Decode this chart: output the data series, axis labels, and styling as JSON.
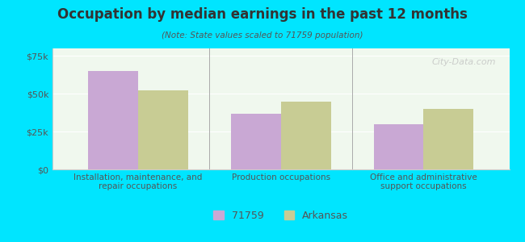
{
  "title": "Occupation by median earnings in the past 12 months",
  "subtitle": "(Note: State values scaled to 71759 population)",
  "categories": [
    "Installation, maintenance, and\nrepair occupations",
    "Production occupations",
    "Office and administrative\nsupport occupations"
  ],
  "values_71759": [
    65000,
    37000,
    30000
  ],
  "values_arkansas": [
    52000,
    45000,
    40000
  ],
  "color_71759": "#c9a8d4",
  "color_arkansas": "#c8cc94",
  "background_outer": "#00e5ff",
  "background_plot": "#f0f8ee",
  "ylabel_ticks": [
    0,
    25000,
    50000,
    75000
  ],
  "ylabel_labels": [
    "$0",
    "$25k",
    "$50k",
    "$75k"
  ],
  "ylim": [
    0,
    80000
  ],
  "legend_label_1": "71759",
  "legend_label_2": "Arkansas",
  "bar_width": 0.35,
  "watermark": "City-Data.com"
}
